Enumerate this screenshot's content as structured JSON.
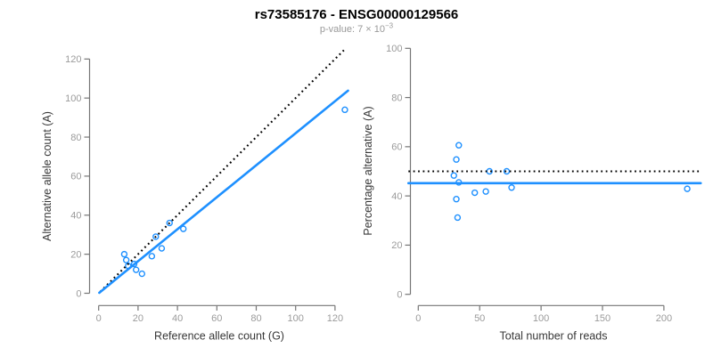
{
  "title": "rs73585176 - ENSG00000129566",
  "subtitle": {
    "text": "p-value: 7 × 10",
    "exponent": "−3"
  },
  "colors": {
    "point_blue": "#1E90FF",
    "fit_line_blue": "#1E90FF",
    "reference_line_black": "#000000",
    "axis_line": "#757575",
    "tick_label": "#9b9b9b",
    "axis_title": "#383838",
    "title": "#000000",
    "subtitle": "#999999"
  },
  "chart_data": [
    {
      "id": "allele-counts-panel",
      "type": "scatter",
      "xlabel": "Reference allele count (G)",
      "ylabel": "Alternative allele count (A)",
      "xticks": [
        0,
        20,
        40,
        60,
        80,
        100,
        120
      ],
      "yticks": [
        0,
        20,
        40,
        60,
        80,
        100,
        120
      ],
      "xlim": [
        0,
        127
      ],
      "ylim": [
        0,
        126
      ],
      "grid": false,
      "points": [
        [
          13,
          20
        ],
        [
          14,
          17
        ],
        [
          15,
          14
        ],
        [
          18,
          15
        ],
        [
          19,
          12
        ],
        [
          22,
          10
        ],
        [
          27,
          19
        ],
        [
          29,
          29
        ],
        [
          32,
          23
        ],
        [
          36,
          36
        ],
        [
          43,
          33
        ],
        [
          125,
          94
        ]
      ],
      "lines": [
        {
          "name": "identity-line",
          "style": "dotted",
          "color": "#000000",
          "x1": 0.8,
          "y1": 0.8,
          "x2": 124.5,
          "y2": 124.5
        },
        {
          "name": "fitted-ratio-line",
          "style": "solid",
          "color": "#1E90FF",
          "x1": 0.3,
          "y1": 0.25,
          "x2": 126.6,
          "y2": 103.8
        }
      ]
    },
    {
      "id": "percentage-vs-reads-panel",
      "type": "scatter",
      "xlabel": "Total number of reads",
      "ylabel": "Percentage alternative (A)",
      "xticks": [
        0,
        50,
        100,
        150,
        200
      ],
      "yticks": [
        0,
        20,
        40,
        60,
        80,
        100
      ],
      "xlim": [
        0,
        230
      ],
      "ylim": [
        0,
        100
      ],
      "grid": false,
      "points": [
        [
          33,
          60.6
        ],
        [
          31,
          54.8
        ],
        [
          29,
          48.3
        ],
        [
          33,
          45.5
        ],
        [
          31,
          38.7
        ],
        [
          32,
          31.2
        ],
        [
          46,
          41.3
        ],
        [
          58,
          50.0
        ],
        [
          55,
          41.8
        ],
        [
          72,
          50.0
        ],
        [
          76,
          43.4
        ],
        [
          219,
          42.9
        ]
      ],
      "lines": [
        {
          "name": "fifty-percent-line",
          "style": "dotted",
          "color": "#000000",
          "x1": -8,
          "y1": 50,
          "x2": 230,
          "y2": 50
        },
        {
          "name": "mean-percentage-line",
          "style": "solid",
          "color": "#1E90FF",
          "x1": -8,
          "y1": 45.2,
          "x2": 230,
          "y2": 45.2
        }
      ]
    }
  ]
}
